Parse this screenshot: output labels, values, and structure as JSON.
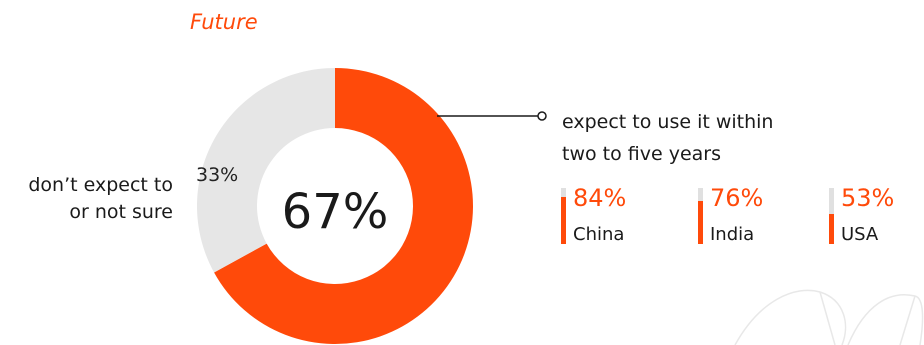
{
  "chart_data": {
    "type": "pie",
    "title": "Future",
    "slices": [
      {
        "label": "expect to use it within two to five years",
        "value": 67,
        "color": "#ff4a0a"
      },
      {
        "label": "don’t expect to or not sure",
        "value": 33,
        "color": "#e6e6e6"
      }
    ],
    "center_label": "67%",
    "small_label": "33%",
    "left_label_lines": [
      "don’t expect to",
      "or not sure"
    ],
    "callout_lines": [
      "expect to use it within",
      "two to five years"
    ],
    "countries": [
      {
        "name": "China",
        "label": "84%",
        "value": 84
      },
      {
        "name": "India",
        "label": "76%",
        "value": 76
      },
      {
        "name": "USA",
        "label": "53%",
        "value": 53
      }
    ]
  },
  "colors": {
    "accent": "#ff4a0a",
    "remainder": "#e6e6e6"
  }
}
